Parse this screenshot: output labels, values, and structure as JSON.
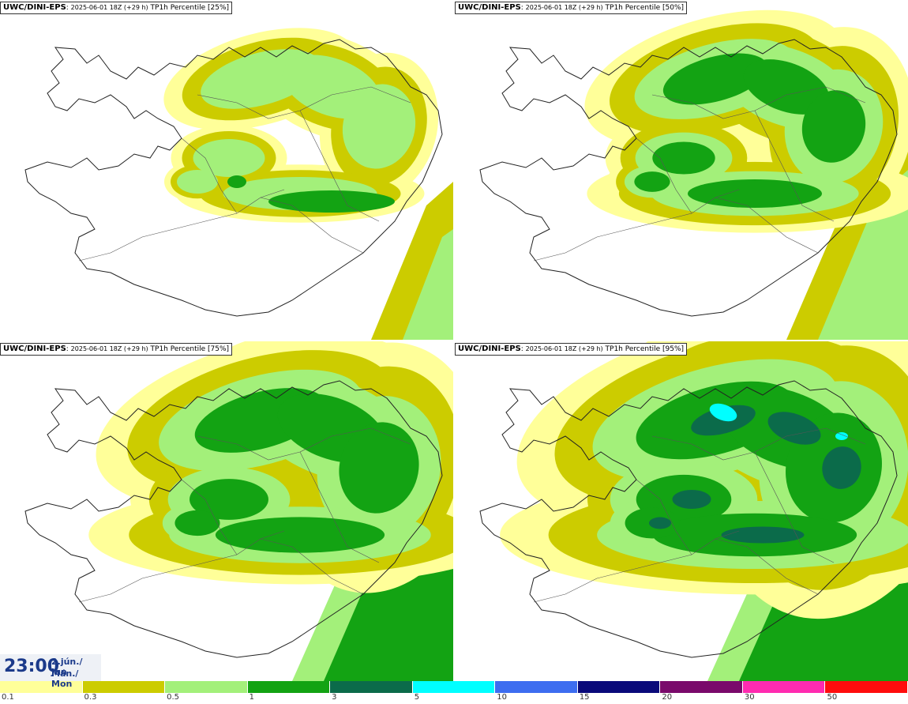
{
  "panels": [
    {
      "model": "UWC/DINI-EPS",
      "run": "2025-06-01 18Z (+29 h)",
      "field": "TP1h Percentile [25%]",
      "level": 0
    },
    {
      "model": "UWC/DINI-EPS",
      "run": "2025-06-01 18Z (+29 h)",
      "field": "TP1h Percentile [50%]",
      "level": 1
    },
    {
      "model": "UWC/DINI-EPS",
      "run": "2025-06-01 18Z (+29 h)",
      "field": "TP1h Percentile [75%]",
      "level": 2
    },
    {
      "model": "UWC/DINI-EPS",
      "run": "2025-06-01 18Z (+29 h)",
      "field": "TP1h Percentile [95%]",
      "level": 3
    }
  ],
  "time": {
    "hour": "23:00",
    "date": "2.jún./ Jun",
    "weekday": "Mán./ Mon"
  },
  "legend": {
    "colors": [
      "#ffff99",
      "#cccc00",
      "#a3f07a",
      "#13a313",
      "#0b6b4a",
      "#00ffff",
      "#3d6df0",
      "#0a0a7a",
      "#7a0a6b",
      "#ff2bb0",
      "#ff0d0d"
    ],
    "labels": [
      "0.1",
      "0.3",
      "0.5",
      "1",
      "3",
      "5",
      "10",
      "15",
      "20",
      "30",
      "50"
    ]
  }
}
